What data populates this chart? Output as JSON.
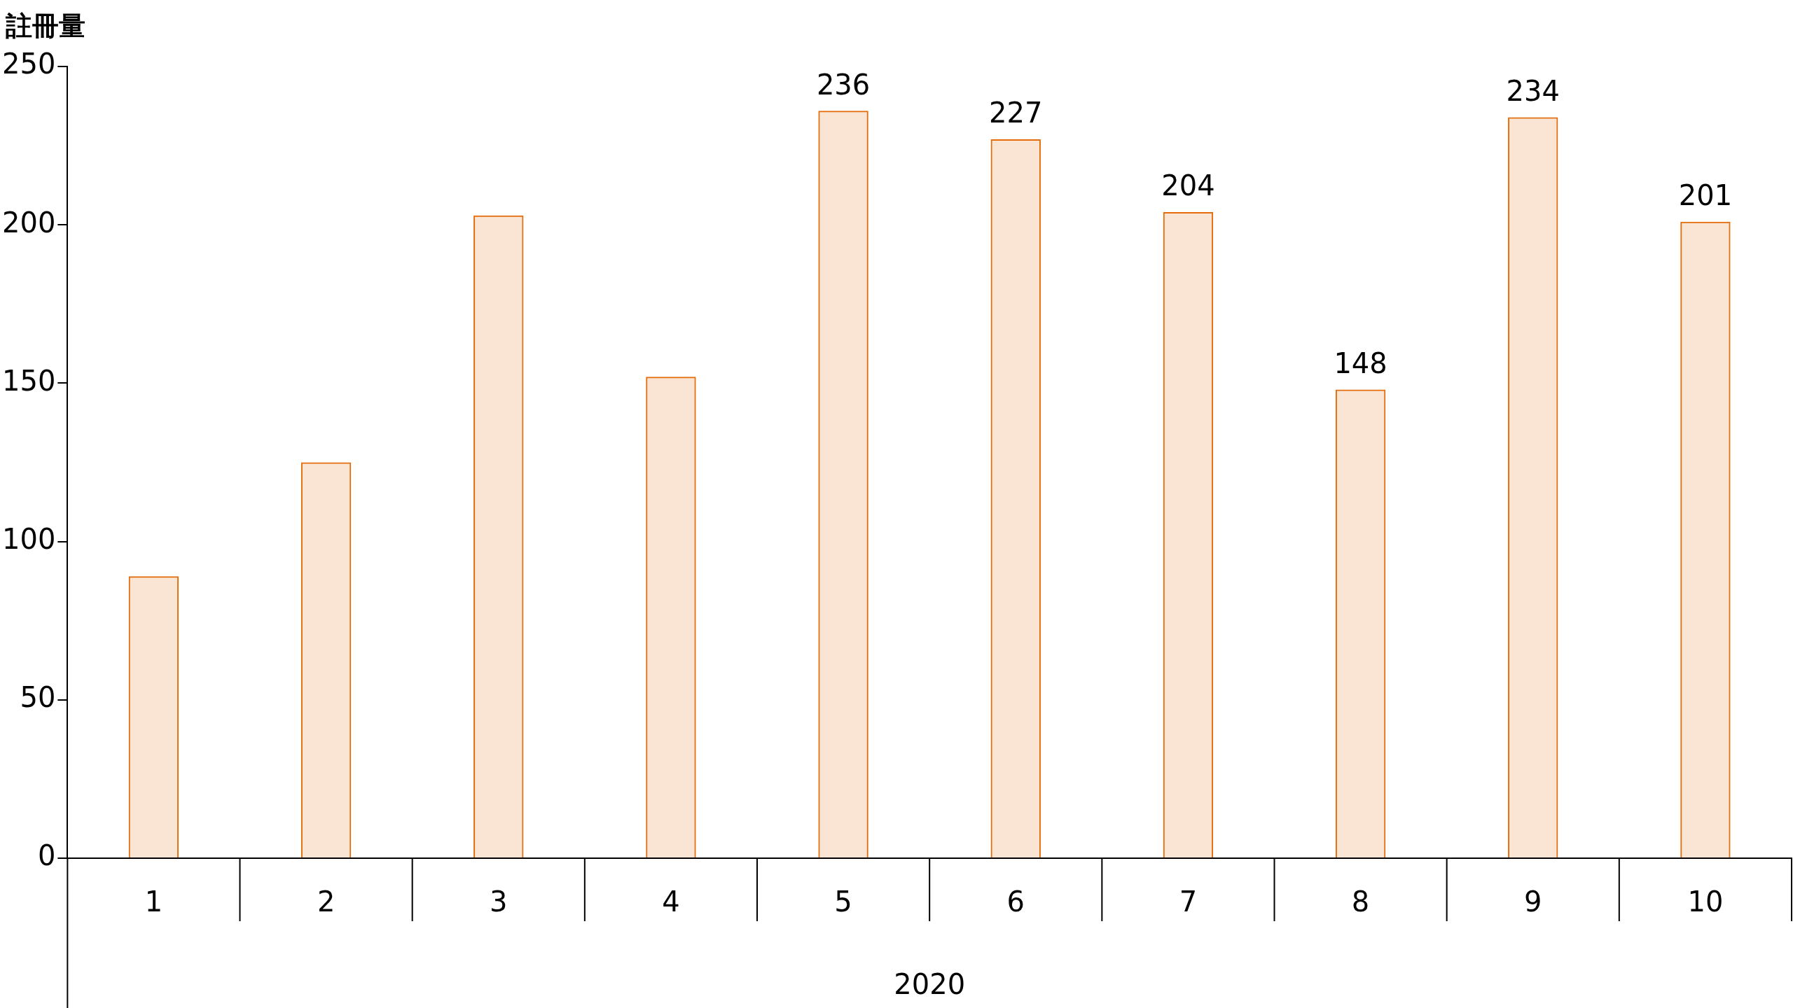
{
  "chart_data": {
    "type": "bar",
    "ylabel": "註冊量",
    "xlabel": "2020",
    "categories": [
      "1",
      "2",
      "3",
      "4",
      "5",
      "6",
      "7",
      "8",
      "9",
      "10"
    ],
    "values": [
      89,
      125,
      203,
      152,
      236,
      227,
      204,
      148,
      234,
      201
    ],
    "value_labels": [
      null,
      null,
      null,
      null,
      "236",
      "227",
      "204",
      "148",
      "234",
      "201"
    ],
    "color": "#e46c0a",
    "ylim": [
      0,
      250
    ],
    "yticks": [
      0,
      50,
      100,
      150,
      200,
      250
    ]
  }
}
